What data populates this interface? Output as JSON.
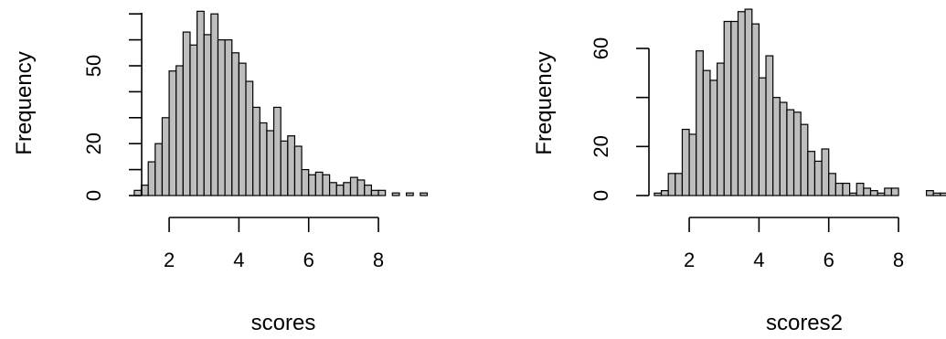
{
  "chart_data": [
    {
      "type": "bar",
      "title": "",
      "xlabel": "scores",
      "ylabel": "Frequency",
      "xlim": [
        0.9,
        9.6
      ],
      "ylim": [
        0,
        72
      ],
      "bin_width": 0.2,
      "x_ticks": [
        2,
        4,
        6,
        8
      ],
      "y_ticks": [
        0,
        20,
        50
      ],
      "bins_start": [
        1.0,
        1.2,
        1.4,
        1.6,
        1.8,
        2.0,
        2.2,
        2.4,
        2.6,
        2.8,
        3.0,
        3.2,
        3.4,
        3.6,
        3.8,
        4.0,
        4.2,
        4.4,
        4.6,
        4.8,
        5.0,
        5.2,
        5.4,
        5.6,
        5.8,
        6.0,
        6.2,
        6.4,
        6.6,
        6.8,
        7.0,
        7.2,
        7.4,
        7.6,
        7.8,
        8.0,
        8.2,
        8.4,
        8.6,
        8.8,
        9.0,
        9.2
      ],
      "values": [
        2,
        4,
        13,
        20,
        30,
        48,
        50,
        63,
        58,
        71,
        62,
        70,
        60,
        60,
        55,
        51,
        44,
        34,
        28,
        25,
        34,
        21,
        23,
        19,
        10,
        8,
        9,
        8,
        5,
        4,
        5,
        7,
        6,
        4,
        2,
        2,
        0,
        1,
        0,
        1,
        0,
        1
      ],
      "grid": false
    },
    {
      "type": "bar",
      "title": "",
      "xlabel": "scores2",
      "ylabel": "Frequency",
      "xlim": [
        0.9,
        9.6
      ],
      "ylim": [
        0,
        78
      ],
      "bin_width": 0.2,
      "x_ticks": [
        2,
        4,
        6,
        8
      ],
      "y_ticks": [
        0,
        20,
        60
      ],
      "bins_start": [
        1.0,
        1.2,
        1.4,
        1.6,
        1.8,
        2.0,
        2.2,
        2.4,
        2.6,
        2.8,
        3.0,
        3.2,
        3.4,
        3.6,
        3.8,
        4.0,
        4.2,
        4.4,
        4.6,
        4.8,
        5.0,
        5.2,
        5.4,
        5.6,
        5.8,
        6.0,
        6.2,
        6.4,
        6.6,
        6.8,
        7.0,
        7.2,
        7.4,
        7.6,
        7.8,
        8.0,
        8.2,
        8.4,
        8.6,
        8.8,
        9.0,
        9.2,
        9.4
      ],
      "values": [
        1,
        2,
        9,
        9,
        27,
        25,
        59,
        51,
        47,
        54,
        71,
        71,
        75,
        76,
        70,
        48,
        57,
        40,
        38,
        35,
        34,
        29,
        18,
        14,
        19,
        9,
        5,
        5,
        1,
        5,
        3,
        2,
        1,
        3,
        3,
        0,
        0,
        0,
        0,
        2,
        1,
        1,
        0
      ],
      "grid": false
    }
  ]
}
